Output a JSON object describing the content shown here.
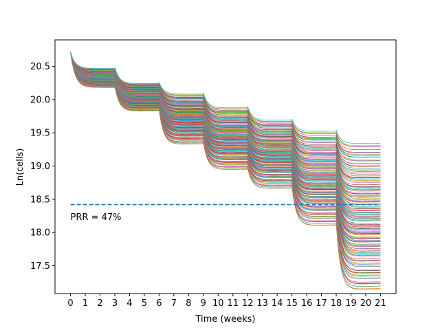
{
  "chart_data": {
    "type": "line",
    "title": "",
    "xlabel": "Time (weeks)",
    "ylabel": "Ln(cells)",
    "xlim": [
      -1.05,
      22.05
    ],
    "ylim": [
      17.08,
      20.9
    ],
    "xticks": [
      0,
      1,
      2,
      3,
      4,
      5,
      6,
      7,
      8,
      9,
      10,
      11,
      12,
      13,
      14,
      15,
      16,
      17,
      18,
      19,
      20,
      21
    ],
    "yticks": [
      17.5,
      18.0,
      18.5,
      19.0,
      19.5,
      20.0,
      20.5
    ],
    "ytick_labels": [
      "17.5",
      "18.0",
      "18.5",
      "19.0",
      "19.5",
      "20.0",
      "20.5"
    ],
    "grid": false,
    "legend": "none",
    "series_description": "Ensemble of simulated trajectories starting at 20.72, decaying in 7 treatment cycles every 3 weeks with partial regrowth between doses",
    "trajectory_start": 20.72,
    "dose_times": [
      0,
      3,
      6,
      9,
      12,
      15,
      18
    ],
    "cycle_minima_envelope": {
      "upper": [
        20.47,
        20.28,
        20.11,
        19.91,
        19.72,
        19.55,
        19.37
      ],
      "lower": [
        20.18,
        19.88,
        19.4,
        19.0,
        18.7,
        18.18,
        17.27
      ]
    },
    "final_values_range": [
      17.27,
      19.37
    ],
    "reference_line": {
      "y": 18.42,
      "style": "dashed",
      "color": "#1f77b4"
    },
    "annotation": {
      "text": "PRR = 47%",
      "x": 0,
      "y": 18.23
    },
    "series_count_visible": 150
  },
  "colors": {
    "palette": [
      "#1f77b4",
      "#ff7f0e",
      "#2ca02c",
      "#d62728",
      "#9467bd",
      "#8c564b",
      "#e377c2",
      "#7f7f7f",
      "#bcbd22",
      "#17becf"
    ],
    "reference_line": "#1f77b4"
  }
}
